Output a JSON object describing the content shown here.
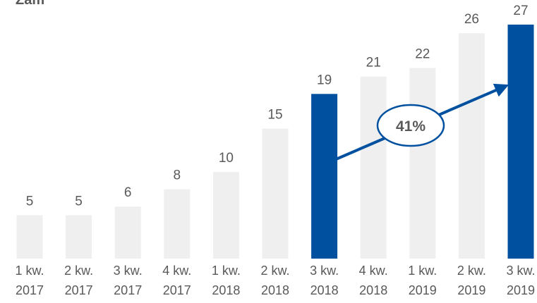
{
  "chart_data": {
    "type": "bar",
    "title": "Zam",
    "categories": [
      [
        "1 kw.",
        "2017"
      ],
      [
        "2 kw.",
        "2017"
      ],
      [
        "3 kw.",
        "2017"
      ],
      [
        "4 kw.",
        "2017"
      ],
      [
        "1 kw.",
        "2018"
      ],
      [
        "2 kw.",
        "2018"
      ],
      [
        "3 kw.",
        "2018"
      ],
      [
        "4 kw.",
        "2018"
      ],
      [
        "1 kw.",
        "2019"
      ],
      [
        "2 kw.",
        "2019"
      ],
      [
        "3 kw.",
        "2019"
      ]
    ],
    "values": [
      5,
      5,
      6,
      8,
      10,
      15,
      19,
      21,
      22,
      26,
      27
    ],
    "highlighted": [
      6,
      10
    ],
    "annotation": {
      "label": "41%",
      "from_index": 6,
      "to_index": 10
    },
    "ylim": [
      0,
      28
    ],
    "grid": false,
    "colors": {
      "bar": "#efefef",
      "highlight": "#0050a0",
      "arrow": "#0050a0",
      "text": "#595959"
    }
  }
}
